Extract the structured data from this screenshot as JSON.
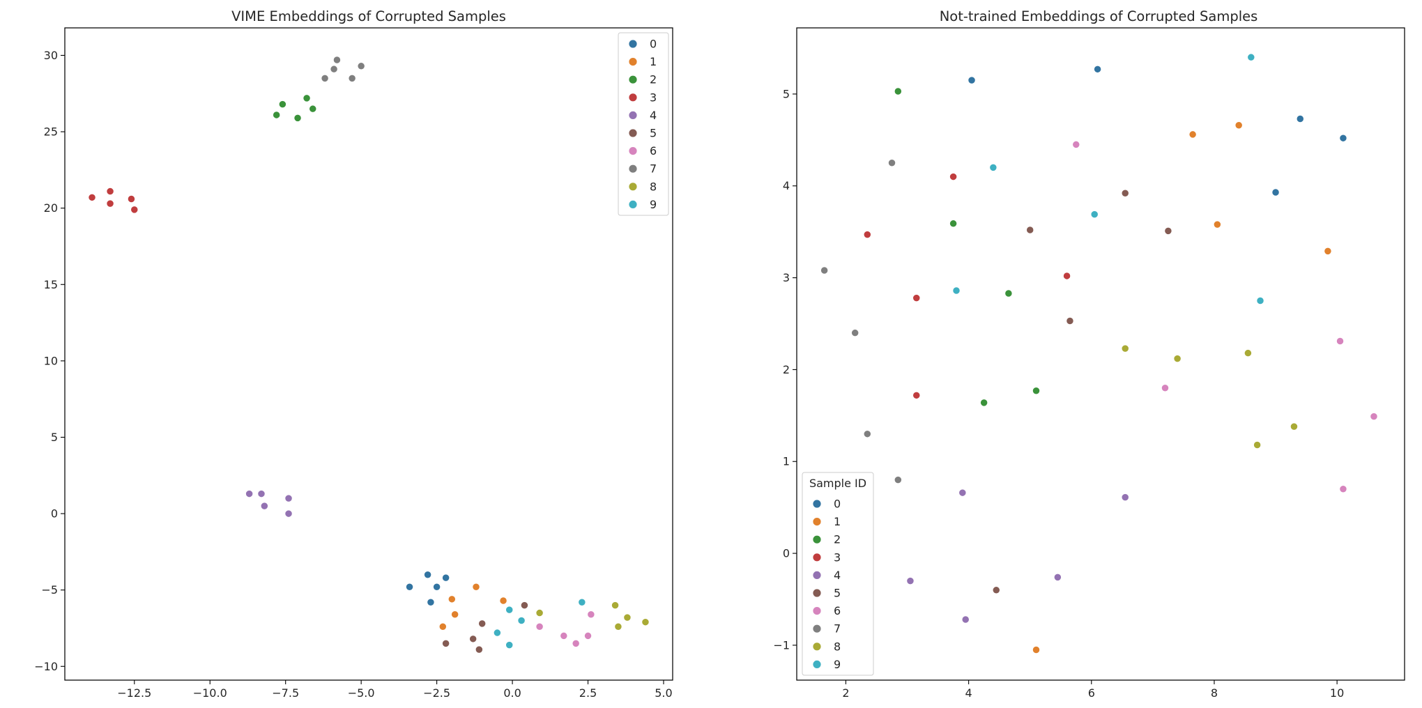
{
  "palette": [
    "#3274a1",
    "#e1812c",
    "#3a923a",
    "#c03d3e",
    "#9372b2",
    "#845b53",
    "#d684bd",
    "#7f7f7f",
    "#a9aa35",
    "#3eb0c2"
  ],
  "chart_data": [
    {
      "type": "scatter",
      "title": "VIME Embeddings of Corrupted Samples",
      "xlim": [
        -14.8,
        5.3
      ],
      "ylim": [
        -10.9,
        31.8
      ],
      "xticks": [
        -12.5,
        -10.0,
        -7.5,
        -5.0,
        -2.5,
        0.0,
        2.5,
        5.0
      ],
      "xtick_labels": [
        "−12.5",
        "−10.0",
        "−7.5",
        "−5.0",
        "−2.5",
        "0.0",
        "2.5",
        "5.0"
      ],
      "yticks": [
        -10,
        -5,
        0,
        5,
        10,
        15,
        20,
        25,
        30
      ],
      "ytick_labels": [
        "−10",
        "−5",
        "0",
        "5",
        "10",
        "15",
        "20",
        "25",
        "30"
      ],
      "grid": false,
      "legend": {
        "title": "",
        "placement": "upper right",
        "labels": [
          "0",
          "1",
          "2",
          "3",
          "4",
          "5",
          "6",
          "7",
          "8",
          "9"
        ]
      },
      "series": [
        {
          "name": "0",
          "points": [
            [
              -3.4,
              -4.8
            ],
            [
              -2.8,
              -4.0
            ],
            [
              -2.7,
              -5.8
            ],
            [
              -2.5,
              -4.8
            ],
            [
              -2.2,
              -4.2
            ]
          ]
        },
        {
          "name": "1",
          "points": [
            [
              -2.3,
              -7.4
            ],
            [
              -2.0,
              -5.6
            ],
            [
              -1.9,
              -6.6
            ],
            [
              -1.2,
              -4.8
            ],
            [
              -0.3,
              -5.7
            ]
          ]
        },
        {
          "name": "2",
          "points": [
            [
              -7.8,
              26.1
            ],
            [
              -7.6,
              26.8
            ],
            [
              -7.1,
              25.9
            ],
            [
              -6.8,
              27.2
            ],
            [
              -6.6,
              26.5
            ]
          ]
        },
        {
          "name": "3",
          "points": [
            [
              -13.9,
              20.7
            ],
            [
              -13.3,
              21.1
            ],
            [
              -13.3,
              20.3
            ],
            [
              -12.6,
              20.6
            ],
            [
              -12.5,
              19.9
            ]
          ]
        },
        {
          "name": "4",
          "points": [
            [
              -8.7,
              1.3
            ],
            [
              -8.3,
              1.3
            ],
            [
              -8.2,
              0.5
            ],
            [
              -7.4,
              1.0
            ],
            [
              -7.4,
              0.0
            ]
          ]
        },
        {
          "name": "5",
          "points": [
            [
              -2.2,
              -8.5
            ],
            [
              -1.3,
              -8.2
            ],
            [
              -1.1,
              -8.9
            ],
            [
              -1.0,
              -7.2
            ],
            [
              0.4,
              -6.0
            ]
          ]
        },
        {
          "name": "6",
          "points": [
            [
              0.9,
              -7.4
            ],
            [
              1.7,
              -8.0
            ],
            [
              2.1,
              -8.5
            ],
            [
              2.5,
              -8.0
            ],
            [
              2.6,
              -6.6
            ]
          ]
        },
        {
          "name": "7",
          "points": [
            [
              -6.2,
              28.5
            ],
            [
              -5.9,
              29.1
            ],
            [
              -5.8,
              29.7
            ],
            [
              -5.3,
              28.5
            ],
            [
              -5.0,
              29.3
            ]
          ]
        },
        {
          "name": "8",
          "points": [
            [
              0.9,
              -6.5
            ],
            [
              3.4,
              -6.0
            ],
            [
              3.5,
              -7.4
            ],
            [
              3.8,
              -6.8
            ],
            [
              4.4,
              -7.1
            ]
          ]
        },
        {
          "name": "9",
          "points": [
            [
              -0.5,
              -7.8
            ],
            [
              -0.1,
              -8.6
            ],
            [
              -0.1,
              -6.3
            ],
            [
              0.3,
              -7.0
            ],
            [
              2.3,
              -5.8
            ]
          ]
        }
      ]
    },
    {
      "type": "scatter",
      "title": "Not-trained Embeddings of Corrupted Samples",
      "xlim": [
        1.2,
        11.1
      ],
      "ylim": [
        -1.38,
        5.72
      ],
      "xticks": [
        2,
        4,
        6,
        8,
        10
      ],
      "xtick_labels": [
        "2",
        "4",
        "6",
        "8",
        "10"
      ],
      "yticks": [
        -1,
        0,
        1,
        2,
        3,
        4,
        5
      ],
      "ytick_labels": [
        "−1",
        "0",
        "1",
        "2",
        "3",
        "4",
        "5"
      ],
      "grid": false,
      "legend": {
        "title": "Sample ID",
        "placement": "lower left",
        "labels": [
          "0",
          "1",
          "2",
          "3",
          "4",
          "5",
          "6",
          "7",
          "8",
          "9"
        ]
      },
      "series": [
        {
          "name": "0",
          "points": [
            [
              4.05,
              5.15
            ],
            [
              6.1,
              5.27
            ],
            [
              9.0,
              3.93
            ],
            [
              9.4,
              4.73
            ],
            [
              10.1,
              4.52
            ]
          ]
        },
        {
          "name": "1",
          "points": [
            [
              5.1,
              -1.05
            ],
            [
              7.65,
              4.56
            ],
            [
              8.05,
              3.58
            ],
            [
              8.4,
              4.66
            ],
            [
              9.85,
              3.29
            ]
          ]
        },
        {
          "name": "2",
          "points": [
            [
              2.85,
              5.03
            ],
            [
              3.75,
              3.59
            ],
            [
              4.25,
              1.64
            ],
            [
              4.65,
              2.83
            ],
            [
              5.1,
              1.77
            ]
          ]
        },
        {
          "name": "3",
          "points": [
            [
              2.35,
              3.47
            ],
            [
              3.15,
              2.78
            ],
            [
              3.15,
              1.72
            ],
            [
              3.75,
              4.1
            ],
            [
              5.6,
              3.02
            ]
          ]
        },
        {
          "name": "4",
          "points": [
            [
              3.05,
              -0.3
            ],
            [
              3.9,
              0.66
            ],
            [
              3.95,
              -0.72
            ],
            [
              5.45,
              -0.26
            ],
            [
              6.55,
              0.61
            ]
          ]
        },
        {
          "name": "5",
          "points": [
            [
              4.45,
              -0.4
            ],
            [
              5.0,
              3.52
            ],
            [
              5.65,
              2.53
            ],
            [
              6.55,
              3.92
            ],
            [
              7.25,
              3.51
            ]
          ]
        },
        {
          "name": "6",
          "points": [
            [
              5.75,
              4.45
            ],
            [
              7.2,
              1.8
            ],
            [
              10.05,
              2.31
            ],
            [
              10.1,
              0.7
            ],
            [
              10.6,
              1.49
            ]
          ]
        },
        {
          "name": "7",
          "points": [
            [
              1.65,
              3.08
            ],
            [
              2.15,
              2.4
            ],
            [
              2.35,
              1.3
            ],
            [
              2.75,
              4.25
            ],
            [
              2.85,
              0.8
            ]
          ]
        },
        {
          "name": "8",
          "points": [
            [
              6.55,
              2.23
            ],
            [
              7.4,
              2.12
            ],
            [
              8.55,
              2.18
            ],
            [
              8.7,
              1.18
            ],
            [
              9.3,
              1.38
            ]
          ]
        },
        {
          "name": "9",
          "points": [
            [
              3.8,
              2.86
            ],
            [
              4.4,
              4.2
            ],
            [
              6.05,
              3.69
            ],
            [
              8.6,
              5.4
            ],
            [
              8.75,
              2.75
            ]
          ]
        }
      ]
    }
  ]
}
